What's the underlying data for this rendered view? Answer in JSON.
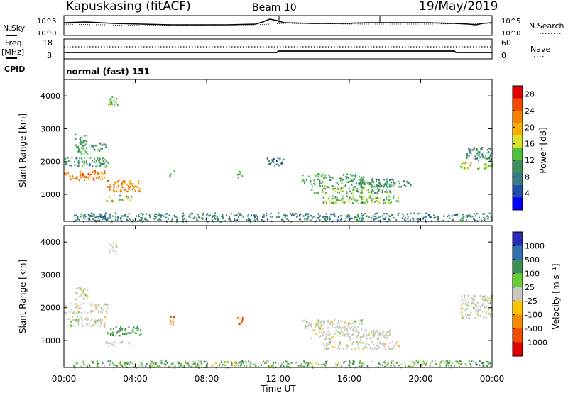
{
  "header": {
    "station": "Kapuskasing (fitACF)",
    "beam": "Beam 10",
    "date": "19/May/2019"
  },
  "panels": {
    "nsky_label": "N.Sky",
    "nsearch_label": "N.Search",
    "noise_left_ticks": [
      "10^5",
      "10^0"
    ],
    "noise_right_ticks": [
      "10^5",
      "10^0"
    ],
    "freq_label_line1": "Freq.",
    "freq_label_line2": "[MHz]",
    "freq_ticks": [
      "18",
      "8"
    ],
    "nave_label": "Nave",
    "nave_ticks": [
      "60",
      "0"
    ],
    "cpid_label": "CPID",
    "cpid_text": "normal (fast) 151"
  },
  "chart_data": [
    {
      "type": "heatmap",
      "title": "",
      "xlabel": "Time UT",
      "ylabel": "Slant Range [km]",
      "x_ticks": [
        "00:00",
        "04:00",
        "08:00",
        "12:00",
        "16:00",
        "20:00",
        "00:00"
      ],
      "xlim_hours": [
        0,
        24
      ],
      "y_ticks": [
        1000,
        2000,
        3000,
        4000
      ],
      "ylim": [
        180,
        4500
      ],
      "colorbar_label": "Power [dB]",
      "colorbar_ticks": [
        4,
        8,
        12,
        16,
        20,
        24,
        28
      ],
      "colorbar_range": [
        0,
        30
      ],
      "colorscale": [
        "#0000ff",
        "#1f4fa8",
        "#3c7a8a",
        "#3e8e5a",
        "#4cc23a",
        "#d9e02a",
        "#f7b000",
        "#f57f00",
        "#f24a00",
        "#e00000"
      ],
      "regions": [
        {
          "t": [
            0.0,
            2.3
          ],
          "r": [
            1450,
            1750
          ],
          "p": 24
        },
        {
          "t": [
            0.0,
            2.5
          ],
          "r": [
            1850,
            2150
          ],
          "p": 10
        },
        {
          "t": [
            0.6,
            1.3
          ],
          "r": [
            2250,
            2850
          ],
          "p": 11
        },
        {
          "t": [
            1.5,
            2.4
          ],
          "r": [
            2300,
            2600
          ],
          "p": 9
        },
        {
          "t": [
            2.4,
            3.0
          ],
          "r": [
            3700,
            4000
          ],
          "p": 13
        },
        {
          "t": [
            2.4,
            4.3
          ],
          "r": [
            1100,
            1450
          ],
          "p": 23
        },
        {
          "t": [
            2.3,
            3.8
          ],
          "r": [
            800,
            1000
          ],
          "p": 15
        },
        {
          "t": [
            5.9,
            6.2
          ],
          "r": [
            1500,
            1800
          ],
          "p": 11
        },
        {
          "t": [
            9.7,
            10.0
          ],
          "r": [
            1500,
            1750
          ],
          "p": 14
        },
        {
          "t": [
            11.3,
            12.3
          ],
          "r": [
            1900,
            2150
          ],
          "p": 7
        },
        {
          "t": [
            13.3,
            16.8
          ],
          "r": [
            1350,
            1650
          ],
          "p": 11
        },
        {
          "t": [
            13.8,
            18.3
          ],
          "r": [
            1050,
            1350
          ],
          "p": 12
        },
        {
          "t": [
            14.5,
            18.8
          ],
          "r": [
            750,
            1000
          ],
          "p": 13
        },
        {
          "t": [
            16.5,
            19.5
          ],
          "r": [
            1250,
            1500
          ],
          "p": 9
        },
        {
          "t": [
            22.2,
            24.0
          ],
          "r": [
            1800,
            2000
          ],
          "p": 17
        },
        {
          "t": [
            22.5,
            24.0
          ],
          "r": [
            2050,
            2450
          ],
          "p": 9
        },
        {
          "t": [
            0.5,
            24.0
          ],
          "r": [
            190,
            450
          ],
          "p": 8
        }
      ]
    },
    {
      "type": "heatmap",
      "title": "",
      "xlabel": "Time UT",
      "ylabel": "Slant Range [km]",
      "x_ticks": [
        "00:00",
        "04:00",
        "08:00",
        "12:00",
        "16:00",
        "20:00",
        "00:00"
      ],
      "xlim_hours": [
        0,
        24
      ],
      "y_ticks": [
        1000,
        2000,
        3000,
        4000
      ],
      "ylim": [
        180,
        4500
      ],
      "colorbar_label": "Velocity [m s⁻¹]",
      "colorbar_ticks": [
        "1000",
        "500",
        "100",
        "25",
        "-25",
        "-100",
        "-500",
        "-1000"
      ],
      "colorscale": [
        "#2a2ab8",
        "#2e6fb0",
        "#3e8e5a",
        "#66cc33",
        "#c8c8c0",
        "#f7c400",
        "#f58a00",
        "#f24a00",
        "#e00000"
      ],
      "regions": [
        {
          "t": [
            0.0,
            2.3
          ],
          "r": [
            1450,
            1750
          ],
          "v": 0
        },
        {
          "t": [
            0.0,
            2.5
          ],
          "r": [
            1850,
            2150
          ],
          "v": 0
        },
        {
          "t": [
            0.6,
            1.3
          ],
          "r": [
            2250,
            2650
          ],
          "v": 0
        },
        {
          "t": [
            2.4,
            3.0
          ],
          "r": [
            3700,
            4000
          ],
          "v": 0
        },
        {
          "t": [
            2.4,
            4.3
          ],
          "r": [
            1150,
            1450
          ],
          "v": 150
        },
        {
          "t": [
            2.3,
            3.8
          ],
          "r": [
            850,
            1000
          ],
          "v": 0
        },
        {
          "t": [
            5.9,
            6.2
          ],
          "r": [
            1500,
            1750
          ],
          "v": -300
        },
        {
          "t": [
            9.7,
            10.0
          ],
          "r": [
            1500,
            1750
          ],
          "v": -400
        },
        {
          "t": [
            13.3,
            16.8
          ],
          "r": [
            1350,
            1650
          ],
          "v": 0
        },
        {
          "t": [
            13.8,
            18.3
          ],
          "r": [
            1050,
            1350
          ],
          "v": 0
        },
        {
          "t": [
            14.5,
            18.8
          ],
          "r": [
            750,
            1000
          ],
          "v": 0
        },
        {
          "t": [
            22.2,
            24.0
          ],
          "r": [
            1700,
            2400
          ],
          "v": 0
        },
        {
          "t": [
            0.5,
            24.0
          ],
          "r": [
            190,
            400
          ],
          "v": 80
        }
      ]
    }
  ]
}
